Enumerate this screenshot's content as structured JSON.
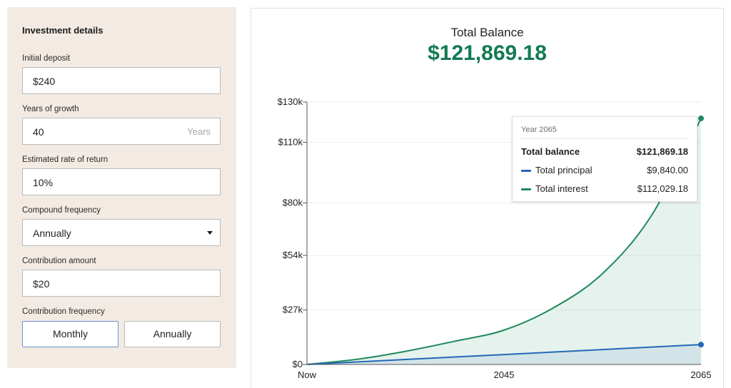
{
  "form": {
    "title": "Investment details",
    "initial_deposit": {
      "label": "Initial deposit",
      "value": "$240"
    },
    "years_of_growth": {
      "label": "Years of growth",
      "value": "40",
      "suffix": "Years"
    },
    "rate_of_return": {
      "label": "Estimated rate of return",
      "value": "10%"
    },
    "compound_frequency": {
      "label": "Compound frequency",
      "value": "Annually"
    },
    "contribution_amount": {
      "label": "Contribution amount",
      "value": "$20"
    },
    "contribution_frequency": {
      "label": "Contribution frequency",
      "options": [
        "Monthly",
        "Annually"
      ],
      "selected": "Monthly"
    }
  },
  "result": {
    "label": "Total Balance",
    "value": "$121,869.18"
  },
  "tooltip": {
    "year": "Year 2065",
    "total_label": "Total balance",
    "total_value": "$121,869.18",
    "principal_label": "Total principal",
    "principal_value": "$9,840.00",
    "interest_label": "Total interest",
    "interest_value": "$112,029.18"
  },
  "colors": {
    "accent_green": "#127a52",
    "interest_line": "#1e8a5c",
    "principal_line": "#2468b8",
    "panel_bg": "#f3ebe3"
  },
  "chart_data": {
    "type": "area",
    "x_labels": [
      "Now",
      "2045",
      "2065"
    ],
    "x": [
      2025,
      2065
    ],
    "y_tick_labels": [
      "$0",
      "$27k",
      "$54k",
      "$80k",
      "$110k",
      "$130k"
    ],
    "y_ticks": [
      0,
      27000,
      54000,
      80000,
      110000,
      130000
    ],
    "ylim": [
      0,
      130000
    ],
    "grid": true,
    "series": [
      {
        "name": "Total principal",
        "color": "#2468b8",
        "x": [
          2025,
          2035,
          2045,
          2055,
          2065
        ],
        "values": [
          0,
          2460,
          4920,
          7380,
          9840
        ]
      },
      {
        "name": "Total balance",
        "color": "#1e8a5c",
        "x": [
          2025,
          2030,
          2035,
          2040,
          2045,
          2050,
          2055,
          2060,
          2065
        ],
        "values": [
          0,
          2500,
          6500,
          11500,
          17000,
          28000,
          45000,
          74000,
          121869.18
        ]
      }
    ]
  }
}
